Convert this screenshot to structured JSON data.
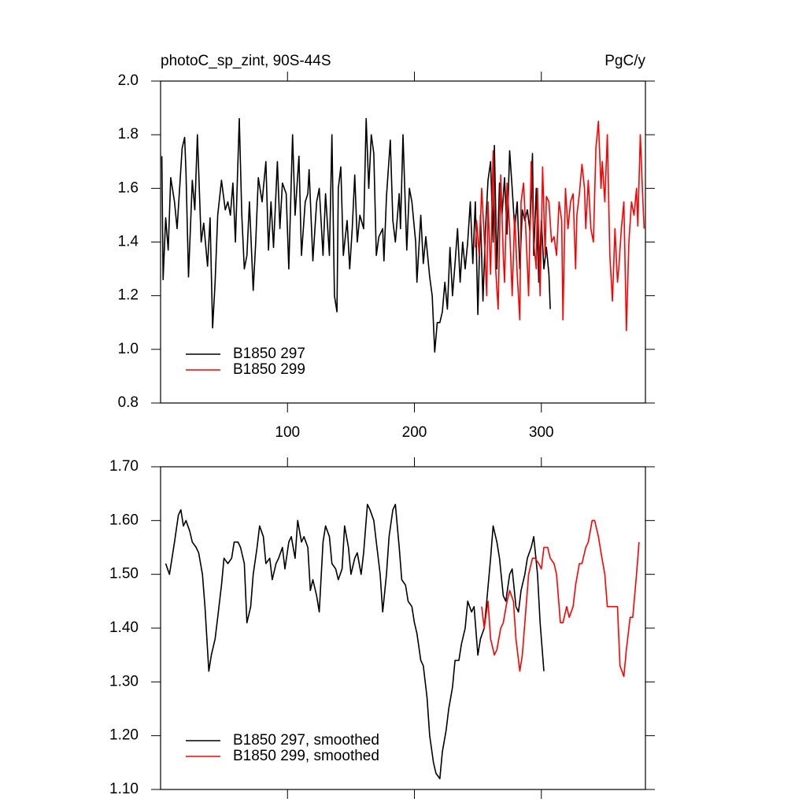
{
  "chart_data": [
    {
      "type": "line",
      "title": "photoC_sp_zint, 90S-44S",
      "units": "PgC/y",
      "xlim": [
        0,
        382
      ],
      "xticks": [
        100,
        200,
        300
      ],
      "xticklabels": true,
      "ylim": [
        0.8,
        2.0
      ],
      "yticks": [
        0.8,
        {
          "value": 1.0,
          "label": "1.0"
        },
        1.2,
        1.4,
        1.6,
        1.8,
        {
          "value": 2.0,
          "label": "2.0"
        }
      ],
      "legend": "lower left",
      "series": [
        {
          "name": "B1850 297",
          "color": "#000000",
          "x": [
            1,
            2,
            4,
            6,
            8,
            11,
            13,
            17,
            19,
            20,
            22,
            25,
            27,
            29,
            32,
            34,
            37,
            39,
            41,
            43,
            45,
            48,
            51,
            53,
            55,
            57,
            59,
            62,
            64,
            66,
            68,
            70,
            73,
            75,
            77,
            80,
            83,
            85,
            87,
            89,
            92,
            94,
            96,
            99,
            101,
            104,
            106,
            109,
            111,
            114,
            116,
            117,
            120,
            123,
            125,
            128,
            130,
            133,
            135,
            137,
            139,
            140,
            142,
            144,
            147,
            149,
            151,
            153,
            155,
            157,
            160,
            162,
            164,
            166,
            168,
            170,
            172,
            175,
            176,
            178,
            181,
            183,
            185,
            188,
            189,
            191,
            194,
            196,
            198,
            201,
            202,
            205,
            207,
            209,
            212,
            214,
            216,
            218,
            220,
            222,
            224,
            226,
            228,
            230,
            232,
            234,
            236,
            238,
            240,
            242,
            244,
            246,
            248,
            250,
            252,
            254,
            256,
            258,
            260,
            262,
            263,
            265,
            267,
            269,
            271,
            273,
            275,
            277,
            279,
            281,
            283,
            285,
            287,
            289,
            291,
            293,
            294,
            296,
            298,
            300,
            302,
            304,
            306,
            307
          ],
          "values": [
            1.72,
            1.26,
            1.49,
            1.37,
            1.64,
            1.55,
            1.45,
            1.75,
            1.79,
            1.66,
            1.27,
            1.63,
            1.52,
            1.8,
            1.4,
            1.47,
            1.31,
            1.49,
            1.08,
            1.25,
            1.5,
            1.63,
            1.52,
            1.55,
            1.5,
            1.62,
            1.4,
            1.86,
            1.5,
            1.3,
            1.35,
            1.55,
            1.22,
            1.4,
            1.64,
            1.55,
            1.7,
            1.37,
            1.55,
            1.38,
            1.7,
            1.45,
            1.62,
            1.58,
            1.3,
            1.8,
            1.5,
            1.72,
            1.35,
            1.55,
            1.58,
            1.67,
            1.33,
            1.55,
            1.6,
            1.35,
            1.58,
            1.35,
            1.8,
            1.2,
            1.14,
            1.6,
            1.68,
            1.35,
            1.48,
            1.3,
            1.45,
            1.65,
            1.4,
            1.5,
            1.45,
            1.86,
            1.6,
            1.8,
            1.73,
            1.35,
            1.42,
            1.45,
            1.33,
            1.57,
            1.78,
            1.48,
            1.4,
            1.58,
            1.45,
            1.8,
            1.37,
            1.6,
            1.55,
            1.4,
            1.25,
            1.5,
            1.32,
            1.42,
            1.27,
            1.2,
            0.99,
            1.1,
            1.1,
            1.14,
            1.25,
            1.15,
            1.38,
            1.2,
            1.32,
            1.45,
            1.25,
            1.4,
            1.3,
            1.4,
            1.55,
            1.32,
            1.55,
            1.13,
            1.5,
            1.18,
            1.45,
            1.63,
            1.7,
            1.4,
            1.76,
            1.3,
            1.62,
            1.5,
            1.64,
            1.43,
            1.74,
            1.6,
            1.45,
            1.55,
            1.3,
            1.52,
            1.48,
            1.52,
            1.44,
            1.73,
            1.35,
            1.6,
            1.25,
            1.48,
            1.3,
            1.38,
            1.28,
            1.15
          ]
        },
        {
          "name": "B1850 299",
          "color": "#ff0000",
          "x": [
            248,
            249,
            251,
            253,
            255,
            257,
            258,
            260,
            262,
            264,
            266,
            268,
            270,
            271,
            273,
            275,
            277,
            279,
            281,
            283,
            284,
            286,
            288,
            290,
            292,
            294,
            296,
            297,
            299,
            301,
            303,
            304,
            306,
            308,
            310,
            312,
            314,
            316,
            317,
            319,
            321,
            323,
            325,
            327,
            328,
            330,
            332,
            334,
            335,
            337,
            339,
            341,
            343,
            345,
            347,
            348,
            350,
            352,
            354,
            356,
            358,
            360,
            361,
            363,
            365,
            367,
            369,
            371,
            373,
            375,
            376,
            378,
            380,
            381
          ],
          "values": [
            1.38,
            1.48,
            1.35,
            1.6,
            1.42,
            1.2,
            1.55,
            1.28,
            1.74,
            1.3,
            1.15,
            1.65,
            1.35,
            1.25,
            1.62,
            1.45,
            1.2,
            1.5,
            1.28,
            1.11,
            1.55,
            1.62,
            1.42,
            1.2,
            1.7,
            1.4,
            1.3,
            1.6,
            1.2,
            1.68,
            1.35,
            1.57,
            1.55,
            1.4,
            1.42,
            1.35,
            1.55,
            1.48,
            1.11,
            1.6,
            1.45,
            1.55,
            1.58,
            1.3,
            1.5,
            1.58,
            1.69,
            1.6,
            1.45,
            1.63,
            1.45,
            1.4,
            1.75,
            1.85,
            1.6,
            1.7,
            1.55,
            1.8,
            1.35,
            1.18,
            1.45,
            1.25,
            1.3,
            1.45,
            1.55,
            1.07,
            1.4,
            1.55,
            1.5,
            1.6,
            1.46,
            1.8,
            1.55,
            1.45
          ]
        }
      ]
    },
    {
      "type": "line",
      "xlim": [
        0,
        382
      ],
      "xticks": [
        100,
        200,
        300
      ],
      "xticklabels": false,
      "ylim": [
        1.1,
        1.7
      ],
      "yticks": [
        {
          "value": 1.1,
          "label": "1.10"
        },
        {
          "value": 1.2,
          "label": "1.20"
        },
        {
          "value": 1.3,
          "label": "1.30"
        },
        {
          "value": 1.4,
          "label": "1.40"
        },
        {
          "value": 1.5,
          "label": "1.50"
        },
        {
          "value": 1.6,
          "label": "1.60"
        },
        {
          "value": 1.7,
          "label": "1.70"
        }
      ],
      "legend": "lower left",
      "series": [
        {
          "name": "B1850 297, smoothed",
          "color": "#000000",
          "x": [
            4,
            7,
            11,
            14,
            16,
            18,
            20,
            23,
            25,
            28,
            30,
            33,
            35,
            38,
            40,
            43,
            45,
            48,
            50,
            53,
            56,
            58,
            61,
            63,
            66,
            68,
            71,
            73,
            76,
            78,
            81,
            83,
            86,
            88,
            91,
            93,
            96,
            98,
            101,
            103,
            106,
            108,
            111,
            113,
            116,
            118,
            120,
            123,
            125,
            128,
            130,
            133,
            135,
            138,
            140,
            143,
            145,
            148,
            150,
            153,
            155,
            158,
            160,
            163,
            165,
            168,
            170,
            173,
            175,
            178,
            180,
            183,
            185,
            188,
            190,
            193,
            195,
            198,
            200,
            202,
            205,
            207,
            210,
            212,
            215,
            217,
            220,
            222,
            225,
            227,
            230,
            232,
            235,
            237,
            240,
            242,
            245,
            247,
            250,
            252,
            255,
            257,
            260,
            262,
            265,
            267,
            270,
            272,
            275,
            277,
            280,
            282,
            284,
            287,
            289,
            292,
            294,
            297,
            299,
            302
          ],
          "values": [
            1.52,
            1.5,
            1.56,
            1.61,
            1.62,
            1.59,
            1.6,
            1.58,
            1.56,
            1.55,
            1.54,
            1.5,
            1.44,
            1.32,
            1.35,
            1.38,
            1.42,
            1.48,
            1.53,
            1.52,
            1.53,
            1.56,
            1.56,
            1.55,
            1.52,
            1.41,
            1.44,
            1.5,
            1.55,
            1.59,
            1.57,
            1.52,
            1.53,
            1.49,
            1.52,
            1.53,
            1.55,
            1.51,
            1.56,
            1.57,
            1.53,
            1.6,
            1.56,
            1.57,
            1.55,
            1.47,
            1.49,
            1.46,
            1.43,
            1.56,
            1.59,
            1.57,
            1.52,
            1.51,
            1.49,
            1.51,
            1.59,
            1.55,
            1.5,
            1.53,
            1.54,
            1.5,
            1.54,
            1.63,
            1.62,
            1.6,
            1.56,
            1.5,
            1.43,
            1.5,
            1.57,
            1.62,
            1.63,
            1.55,
            1.49,
            1.48,
            1.45,
            1.44,
            1.41,
            1.39,
            1.34,
            1.33,
            1.27,
            1.2,
            1.15,
            1.13,
            1.12,
            1.17,
            1.21,
            1.25,
            1.29,
            1.34,
            1.34,
            1.37,
            1.4,
            1.45,
            1.43,
            1.44,
            1.35,
            1.38,
            1.4,
            1.45,
            1.53,
            1.59,
            1.56,
            1.53,
            1.46,
            1.45,
            1.5,
            1.51,
            1.44,
            1.43,
            1.47,
            1.5,
            1.53,
            1.55,
            1.57,
            1.5,
            1.41,
            1.32
          ]
        },
        {
          "name": "B1850 299, smoothed",
          "color": "#ff0000",
          "x": [
            253,
            255,
            258,
            260,
            263,
            265,
            268,
            270,
            273,
            275,
            278,
            280,
            283,
            285,
            288,
            290,
            293,
            295,
            298,
            300,
            302,
            305,
            307,
            310,
            312,
            315,
            317,
            320,
            322,
            325,
            327,
            330,
            332,
            335,
            337,
            340,
            342,
            345,
            347,
            350,
            352,
            355,
            357,
            360,
            362,
            365,
            367,
            370,
            372,
            375,
            377
          ],
          "values": [
            1.44,
            1.4,
            1.45,
            1.38,
            1.35,
            1.36,
            1.4,
            1.41,
            1.45,
            1.47,
            1.45,
            1.38,
            1.32,
            1.35,
            1.44,
            1.5,
            1.53,
            1.53,
            1.52,
            1.51,
            1.55,
            1.55,
            1.53,
            1.52,
            1.5,
            1.41,
            1.41,
            1.44,
            1.42,
            1.44,
            1.48,
            1.52,
            1.52,
            1.55,
            1.56,
            1.6,
            1.6,
            1.57,
            1.54,
            1.5,
            1.44,
            1.44,
            1.44,
            1.44,
            1.33,
            1.31,
            1.36,
            1.42,
            1.42,
            1.5,
            1.56
          ]
        }
      ]
    }
  ]
}
